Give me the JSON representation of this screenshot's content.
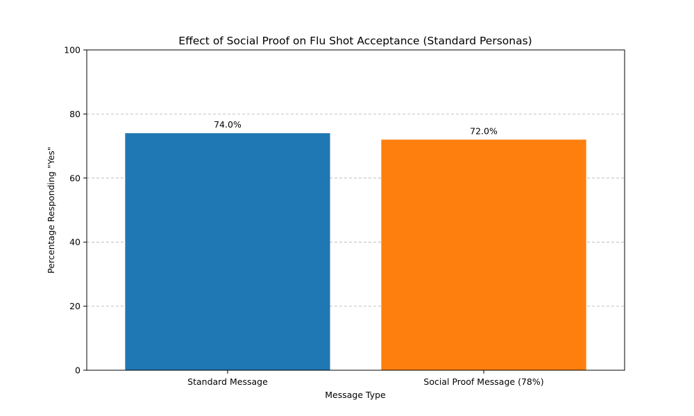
{
  "chart_data": {
    "type": "bar",
    "title": "Effect of Social Proof on Flu Shot Acceptance (Standard Personas)",
    "xlabel": "Message Type",
    "ylabel": "Percentage Responding \"Yes\"",
    "categories": [
      "Standard Message",
      "Social Proof Message (78%)"
    ],
    "values": [
      74.0,
      72.0
    ],
    "data_labels": [
      "74.0%",
      "72.0%"
    ],
    "colors": [
      "#1f77b4",
      "#ff7f0e"
    ],
    "ylim": [
      0,
      100
    ],
    "yticks": [
      0,
      20,
      40,
      60,
      80,
      100
    ],
    "grid": "y-dashed",
    "legend": "none"
  }
}
